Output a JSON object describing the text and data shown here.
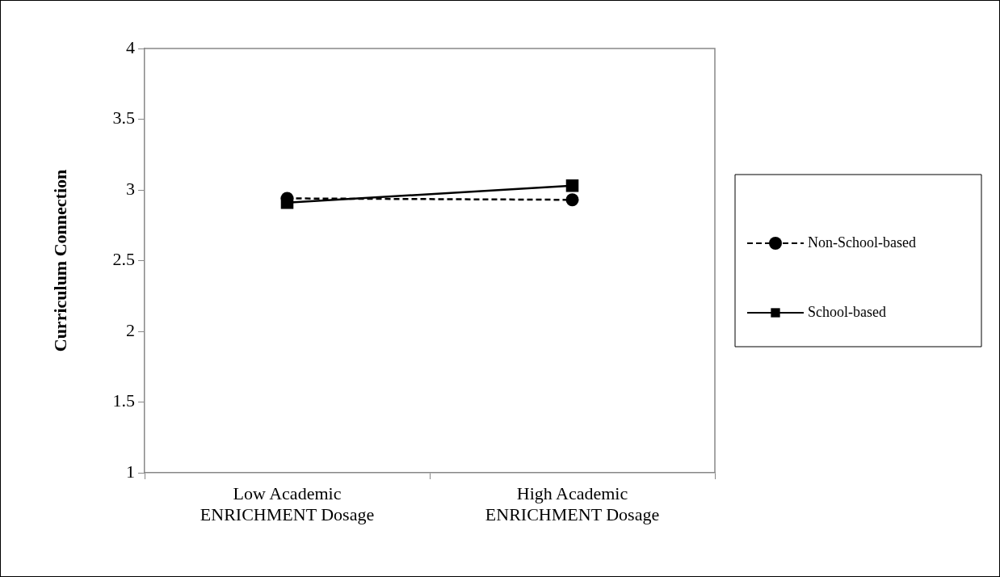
{
  "chart_data": {
    "type": "line",
    "ylabel": "Curriculum Connection",
    "categories": [
      "Low Academic ENRICHMENT Dosage",
      "High Academic ENRICHMENT Dosage"
    ],
    "series": [
      {
        "name": "Non-School-based",
        "color": "#000000",
        "values": [
          2.94,
          2.93
        ],
        "marker": "circle",
        "line_style": "dashed"
      },
      {
        "name": "School-based",
        "color": "#000000",
        "values": [
          2.91,
          3.03
        ],
        "marker": "square",
        "line_style": "solid"
      }
    ],
    "ylim": [
      1,
      4
    ],
    "yticks": [
      1,
      1.5,
      2,
      2.5,
      3,
      3.5,
      4
    ],
    "grid": false,
    "legend": "right"
  }
}
